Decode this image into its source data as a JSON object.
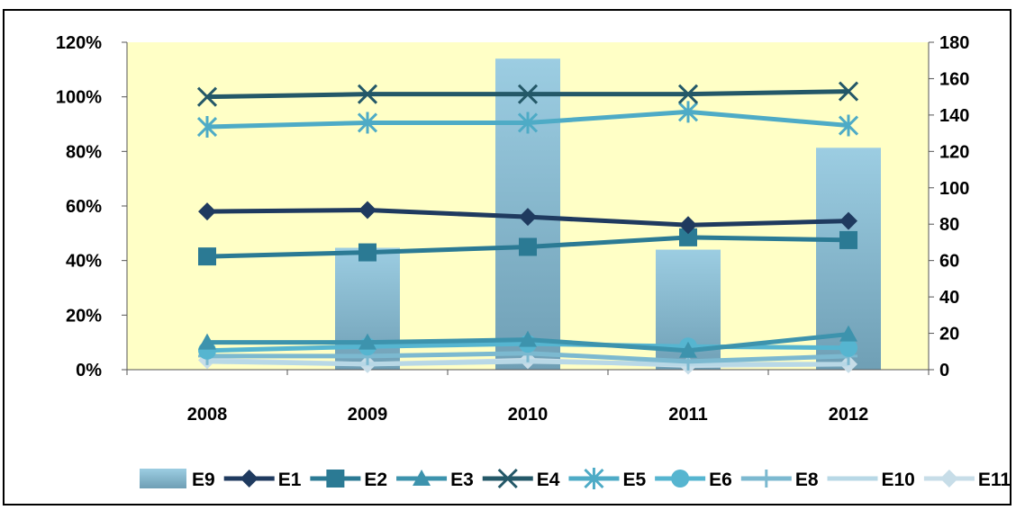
{
  "chart_data": {
    "type": "bar",
    "categories": [
      "2008",
      "2009",
      "2010",
      "2011",
      "2012"
    ],
    "y_left": {
      "ticks": [
        "0%",
        "20%",
        "40%",
        "60%",
        "80%",
        "100%",
        "120%"
      ],
      "ylim": [
        0,
        1.2
      ]
    },
    "y_right": {
      "ticks": [
        "0",
        "20",
        "40",
        "60",
        "80",
        "100",
        "120",
        "140",
        "160",
        "180"
      ],
      "ylim": [
        0,
        180
      ]
    },
    "grid": false,
    "legend_position": "bottom",
    "plot_background": "#ffffc6",
    "bar_series": [
      {
        "name": "E9",
        "axis": "right",
        "values": [
          0,
          67,
          171,
          66,
          122
        ],
        "color": "#8fc3da"
      }
    ],
    "line_series": [
      {
        "name": "E1",
        "axis": "left",
        "values": [
          0.58,
          0.585,
          0.56,
          0.53,
          0.545
        ],
        "color": "#1f3a5f",
        "marker": "diamond"
      },
      {
        "name": "E2",
        "axis": "left",
        "values": [
          0.415,
          0.43,
          0.45,
          0.485,
          0.475
        ],
        "color": "#2b7a94",
        "marker": "square"
      },
      {
        "name": "E3",
        "axis": "left",
        "values": [
          0.1,
          0.1,
          0.11,
          0.07,
          0.13
        ],
        "color": "#3d93ad",
        "marker": "triangle"
      },
      {
        "name": "E4",
        "axis": "left",
        "values": [
          1.0,
          1.01,
          1.01,
          1.01,
          1.02
        ],
        "color": "#245868",
        "marker": "x"
      },
      {
        "name": "E5",
        "axis": "left",
        "values": [
          0.89,
          0.905,
          0.905,
          0.945,
          0.895
        ],
        "color": "#4eabc6",
        "marker": "asterisk"
      },
      {
        "name": "E6",
        "axis": "left",
        "values": [
          0.07,
          0.085,
          0.095,
          0.085,
          0.08
        ],
        "color": "#56b5d0",
        "marker": "circle"
      },
      {
        "name": "E8",
        "axis": "left",
        "values": [
          0.05,
          0.05,
          0.06,
          0.03,
          0.05
        ],
        "color": "#7cb9d0",
        "marker": "plus"
      },
      {
        "name": "E10",
        "axis": "left",
        "values": [
          0.03,
          0.02,
          0.03,
          0.02,
          0.02
        ],
        "color": "#b8d8e6",
        "marker": "none"
      },
      {
        "name": "E11",
        "axis": "left",
        "values": [
          0.035,
          0.02,
          0.035,
          0.015,
          0.02
        ],
        "color": "#c7dde8",
        "marker": "diamond"
      }
    ],
    "legend": [
      "E9",
      "E1",
      "E2",
      "E3",
      "E4",
      "E5",
      "E6",
      "E8",
      "E10",
      "E11"
    ]
  }
}
